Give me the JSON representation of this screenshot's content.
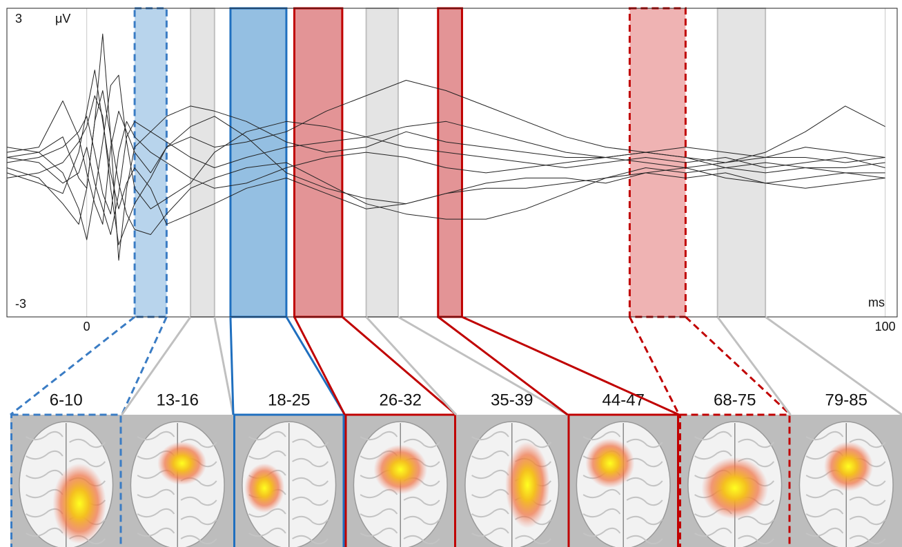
{
  "chart_data": {
    "type": "line",
    "x_label": "ms",
    "y_label": "μV",
    "xlim": [
      -10,
      101.5
    ],
    "ylim": [
      -3,
      3
    ],
    "xticks": [
      0,
      100
    ],
    "yticks": [
      -3,
      3
    ],
    "grid_x": true,
    "color": "#222222",
    "x": [
      -10,
      -6,
      -3,
      -1,
      0,
      1,
      2,
      3,
      4,
      5,
      6,
      8,
      10,
      13,
      16,
      20,
      25,
      30,
      35,
      40,
      45,
      50,
      55,
      60,
      65,
      70,
      75,
      80,
      85,
      90,
      95,
      100
    ],
    "series": [
      {
        "values": [
          0.1,
          0.2,
          0.5,
          -0.3,
          -0.5,
          0.8,
          2.5,
          0.5,
          -1.9,
          -0.5,
          0.3,
          0.6,
          0.9,
          1.1,
          1.0,
          0.8,
          0.4,
          0.2,
          0.3,
          0.6,
          0.4,
          0.3,
          0.2,
          0.1,
          0.1,
          0.2,
          0.1,
          0.0,
          0.1,
          0.1,
          0.0,
          0.1
        ]
      },
      {
        "values": [
          0.2,
          0.3,
          1.2,
          0.5,
          -0.2,
          -0.8,
          -1.2,
          0.3,
          1.0,
          0.6,
          0.2,
          -0.2,
          0.3,
          0.5,
          0.3,
          0.4,
          0.6,
          1.0,
          1.3,
          1.6,
          1.4,
          1.1,
          0.8,
          0.5,
          0.3,
          0.2,
          0.3,
          0.2,
          0.1,
          0.3,
          0.2,
          0.1
        ]
      },
      {
        "values": [
          -0.1,
          -0.3,
          -0.8,
          -1.2,
          -0.5,
          0.8,
          1.4,
          0.5,
          -0.4,
          -1.0,
          -1.3,
          -1.4,
          -1.0,
          -0.5,
          -0.3,
          -0.1,
          0.0,
          -0.4,
          -0.8,
          -1.0,
          -1.1,
          -1.1,
          -0.9,
          -0.6,
          -0.3,
          -0.1,
          -0.2,
          -0.1,
          0.0,
          -0.1,
          -0.1,
          0.0
        ]
      },
      {
        "values": [
          0.0,
          0.1,
          0.3,
          0.6,
          0.9,
          0.2,
          -0.6,
          -1.0,
          0.2,
          0.8,
          0.5,
          0.2,
          0.0,
          -0.3,
          -0.5,
          -0.4,
          -0.1,
          0.1,
          0.2,
          0.1,
          -0.1,
          -0.2,
          -0.1,
          0.0,
          0.1,
          0.0,
          -0.1,
          0.0,
          0.2,
          0.6,
          1.1,
          0.7
        ]
      },
      {
        "values": [
          0.3,
          0.2,
          -0.2,
          -0.9,
          -1.5,
          -0.6,
          0.4,
          1.5,
          1.7,
          0.4,
          -0.5,
          -0.9,
          -0.7,
          -0.4,
          0.2,
          0.6,
          0.8,
          0.7,
          0.5,
          0.3,
          0.2,
          0.1,
          0.0,
          -0.1,
          0.0,
          0.1,
          0.0,
          0.1,
          -0.1,
          0.0,
          0.1,
          -0.1
        ]
      },
      {
        "values": [
          -0.3,
          -0.2,
          0.0,
          0.4,
          0.7,
          1.3,
          0.9,
          -0.5,
          -1.6,
          -1.2,
          -0.8,
          -0.3,
          0.3,
          0.7,
          0.9,
          0.5,
          -0.2,
          -0.5,
          -0.7,
          -0.8,
          -0.6,
          -0.5,
          -0.5,
          -0.4,
          -0.3,
          -0.2,
          -0.3,
          -0.2,
          -0.4,
          -0.3,
          -0.2,
          -0.3
        ]
      },
      {
        "values": [
          0.1,
          0.0,
          -0.4,
          -0.2,
          0.3,
          -0.4,
          -0.9,
          -1.4,
          -0.6,
          0.5,
          0.8,
          0.6,
          0.4,
          0.1,
          -0.1,
          0.1,
          0.3,
          0.4,
          0.5,
          0.7,
          0.8,
          0.6,
          0.4,
          0.2,
          0.1,
          0.2,
          0.1,
          -0.1,
          -0.2,
          -0.1,
          -0.2,
          -0.2
        ]
      },
      {
        "values": [
          -0.2,
          -0.4,
          -0.6,
          0.2,
          1.0,
          1.8,
          0.8,
          -0.2,
          -0.9,
          -0.4,
          -0.1,
          -0.5,
          -1.2,
          -1.0,
          -0.8,
          -0.5,
          -0.3,
          -0.6,
          -0.9,
          -0.8,
          -0.6,
          -0.4,
          -0.3,
          -0.3,
          -0.4,
          -0.2,
          -0.1,
          -0.3,
          -0.4,
          -0.5,
          -0.4,
          -0.3
        ]
      }
    ],
    "windows": [
      {
        "label": "6-10",
        "start": 6,
        "end": 10,
        "color": "#3a7cc4",
        "fill": "#b8d4ec",
        "dashed": true,
        "framed": true
      },
      {
        "label": "13-16",
        "start": 13,
        "end": 16,
        "color": "#c0c0c0",
        "fill": "#e4e4e4",
        "dashed": false,
        "framed": false
      },
      {
        "label": "18-25",
        "start": 18,
        "end": 25,
        "color": "#1f6fbf",
        "fill": "#94bfe2",
        "dashed": false,
        "framed": true
      },
      {
        "label": "26-32",
        "start": 26,
        "end": 32,
        "color": "#c00000",
        "fill": "#e39496",
        "dashed": false,
        "framed": true
      },
      {
        "label": "35-39",
        "start": 35,
        "end": 39,
        "color": "#c0c0c0",
        "fill": "#e4e4e4",
        "dashed": false,
        "framed": false
      },
      {
        "label": "44-47",
        "start": 44,
        "end": 47,
        "color": "#c00000",
        "fill": "#e39496",
        "dashed": false,
        "framed": true
      },
      {
        "label": "68-75",
        "start": 68,
        "end": 75,
        "color": "#c00000",
        "fill": "#efb3b3",
        "dashed": true,
        "framed": true
      },
      {
        "label": "79-85",
        "start": 79,
        "end": 85,
        "color": "#c0c0c0",
        "fill": "#e4e4e4",
        "dashed": false,
        "framed": false
      }
    ]
  }
}
